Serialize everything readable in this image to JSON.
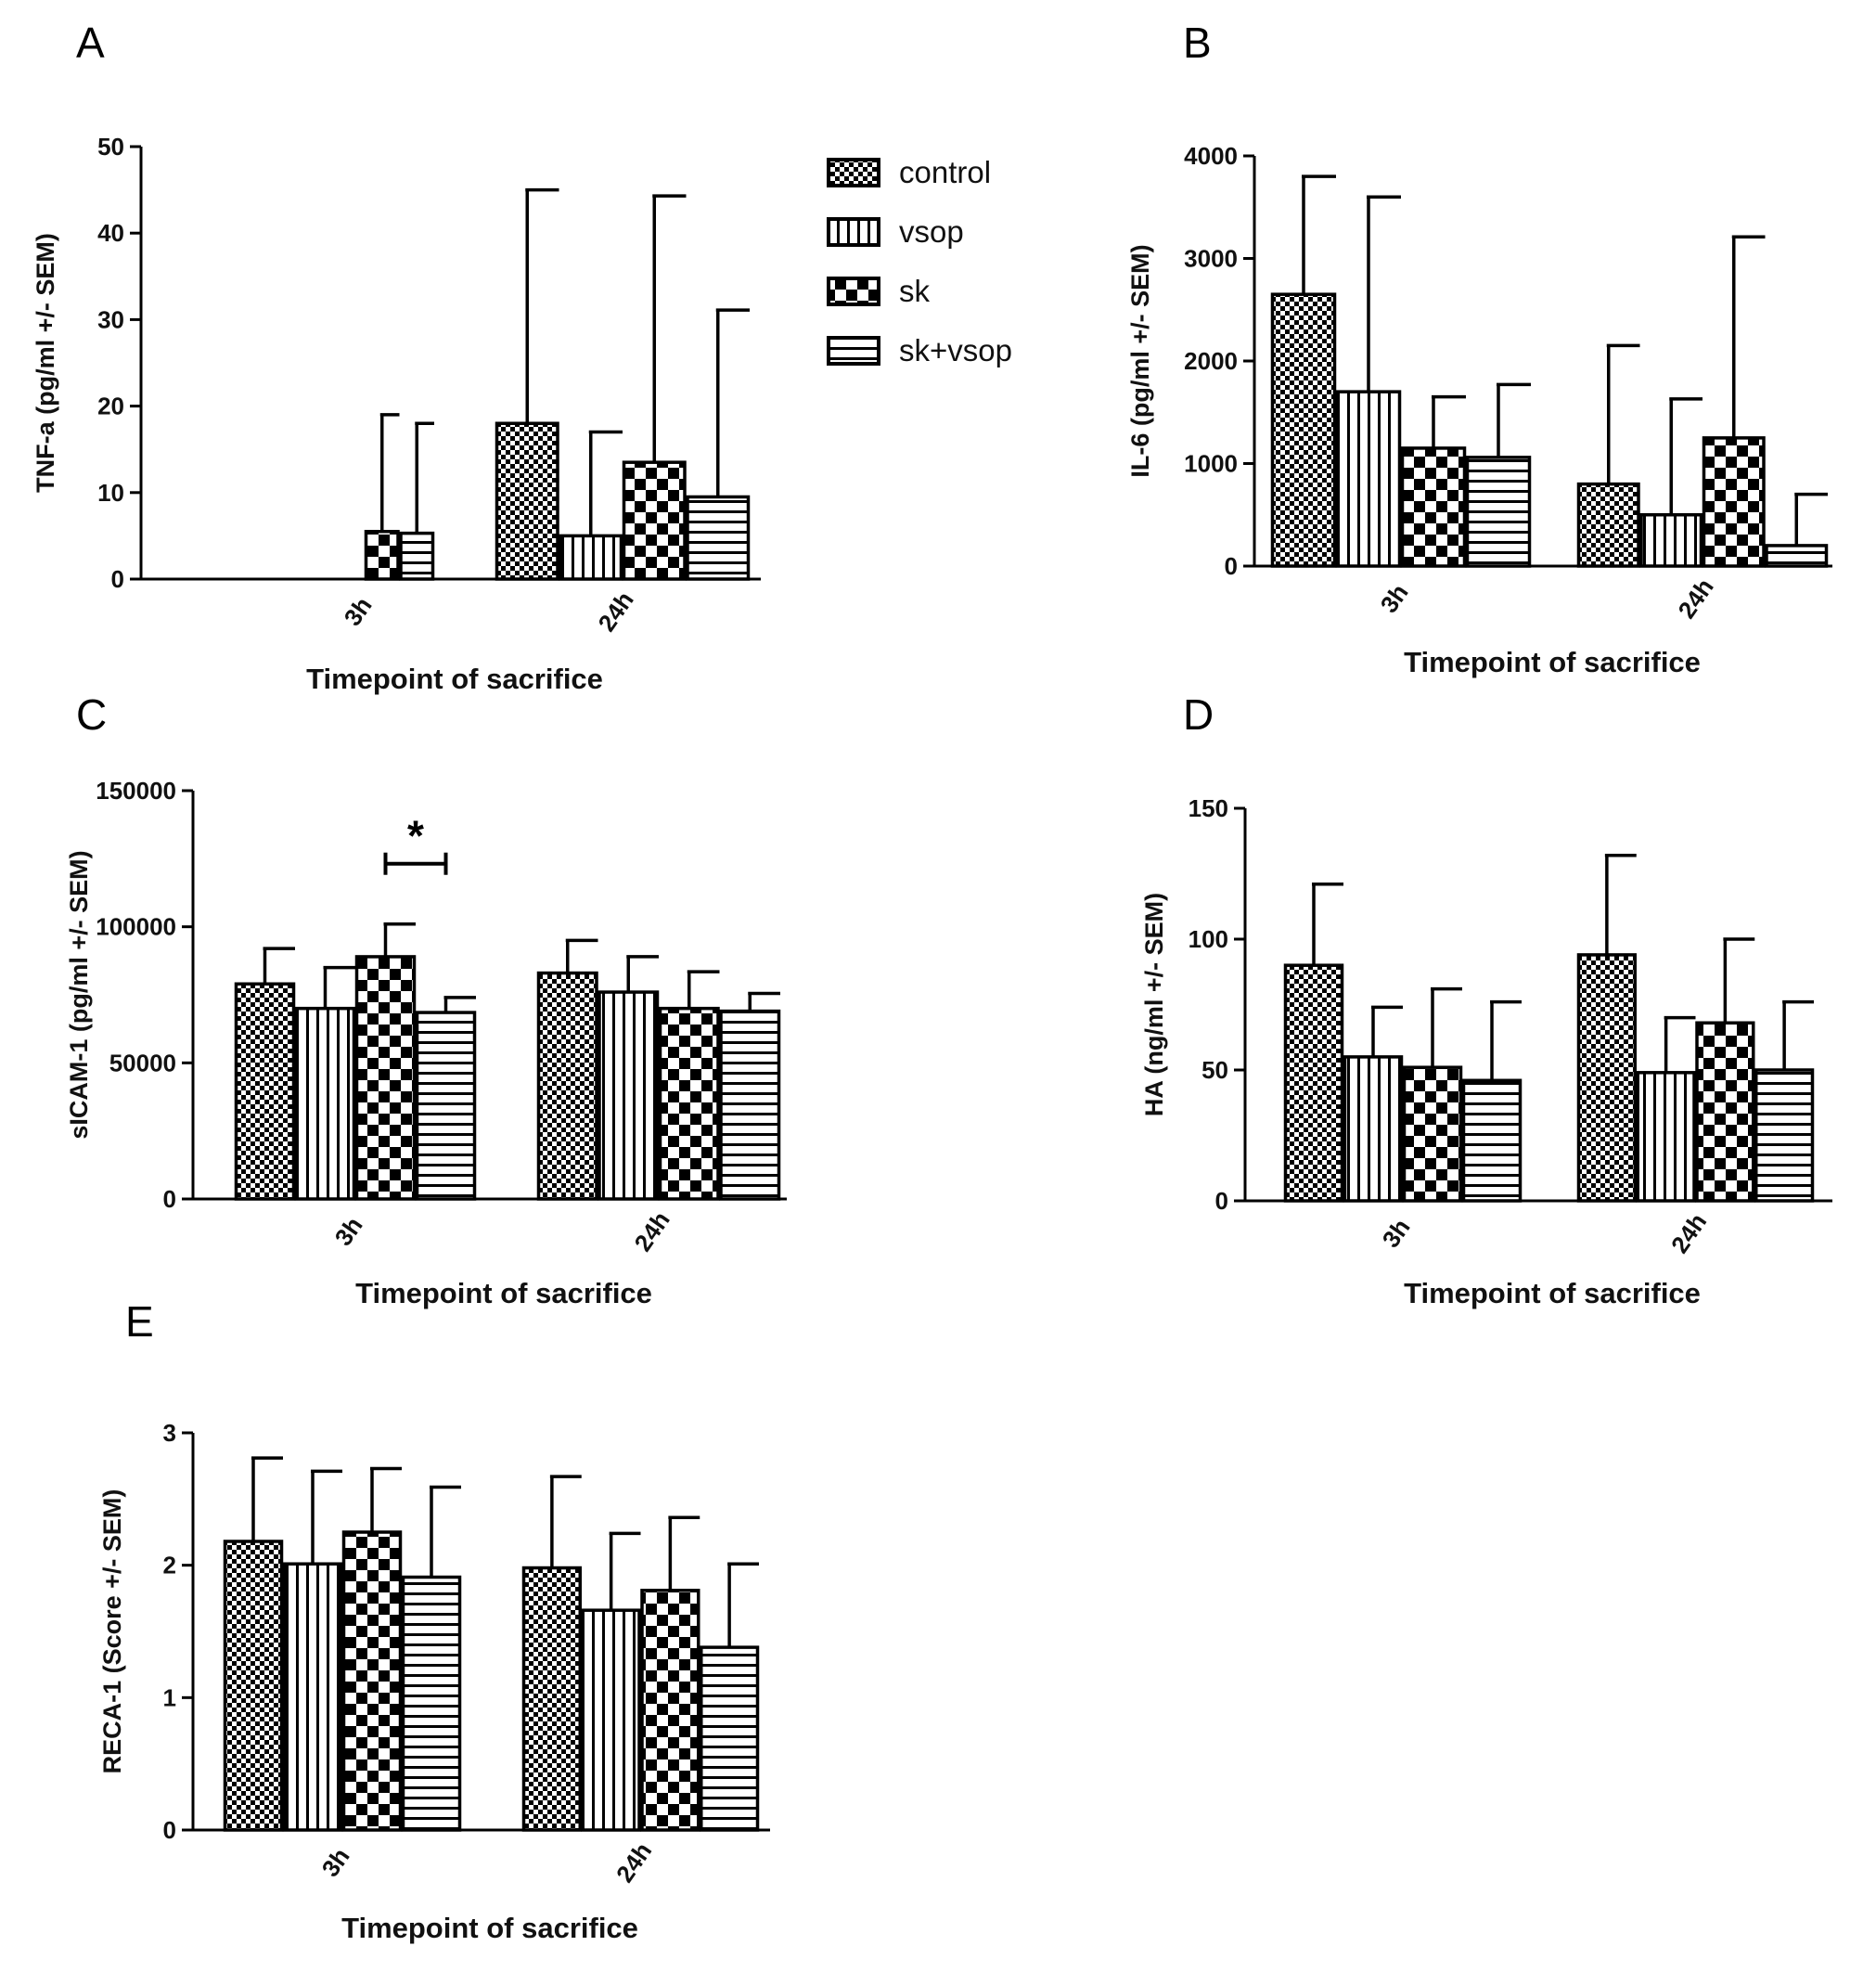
{
  "colors": {
    "ink": "#000000",
    "background": "#ffffff"
  },
  "legend": {
    "entries": [
      {
        "label": "control",
        "pattern": "checker-fine"
      },
      {
        "label": "vsop",
        "pattern": "vertical"
      },
      {
        "label": "sk",
        "pattern": "checker-big"
      },
      {
        "label": "sk+vsop",
        "pattern": "horizontal"
      }
    ]
  },
  "chart_data": [
    {
      "panel": "A",
      "type": "bar",
      "categories": [
        "3h",
        "24h"
      ],
      "series": [
        {
          "name": "control",
          "values": [
            0,
            18
          ],
          "errors": [
            0,
            27
          ]
        },
        {
          "name": "vsop",
          "values": [
            0,
            5
          ],
          "errors": [
            0,
            12
          ]
        },
        {
          "name": "sk",
          "values": [
            5.5,
            13.5
          ],
          "errors": [
            13.5,
            30.8
          ]
        },
        {
          "name": "sk+vsop",
          "values": [
            5.3,
            9.5
          ],
          "errors": [
            12.7,
            21.6
          ]
        }
      ],
      "xlabel": "Timepoint of sacrifice",
      "ylabel": "TNF-a (pg/ml +/- SEM)",
      "ylim": [
        0,
        50
      ],
      "yticks": [
        0,
        10,
        20,
        30,
        40,
        50
      ],
      "ytick_labels": [
        "0",
        "10",
        "20",
        "30",
        "40",
        "50"
      ]
    },
    {
      "panel": "B",
      "type": "bar",
      "categories": [
        "3h",
        "24h"
      ],
      "series": [
        {
          "name": "control",
          "values": [
            2650,
            800
          ],
          "errors": [
            1150,
            1350
          ]
        },
        {
          "name": "vsop",
          "values": [
            1700,
            500
          ],
          "errors": [
            1900,
            1130
          ]
        },
        {
          "name": "sk",
          "values": [
            1150,
            1250
          ],
          "errors": [
            500,
            1960
          ]
        },
        {
          "name": "sk+vsop",
          "values": [
            1060,
            200
          ],
          "errors": [
            710,
            500
          ]
        }
      ],
      "xlabel": "Timepoint of sacrifice",
      "ylabel": "IL-6 (pg/ml +/- SEM)",
      "ylim": [
        0,
        4000
      ],
      "yticks": [
        0,
        1000,
        2000,
        3000,
        4000
      ],
      "ytick_labels": [
        "0",
        "1000",
        "2000",
        "3000",
        "4000"
      ]
    },
    {
      "panel": "C",
      "type": "bar",
      "categories": [
        "3h",
        "24h"
      ],
      "series": [
        {
          "name": "control",
          "values": [
            79000,
            83000
          ],
          "errors": [
            13000,
            12000
          ]
        },
        {
          "name": "vsop",
          "values": [
            70000,
            76000
          ],
          "errors": [
            15000,
            13000
          ]
        },
        {
          "name": "sk",
          "values": [
            89000,
            70000
          ],
          "errors": [
            12000,
            13500
          ]
        },
        {
          "name": "sk+vsop",
          "values": [
            68500,
            69000
          ],
          "errors": [
            5500,
            6500
          ]
        }
      ],
      "significance": {
        "label": "*",
        "category": "3h",
        "from_series": "sk",
        "to_series": "sk+vsop"
      },
      "xlabel": "Timepoint of sacrifice",
      "ylabel": "sICAM-1 (pg/ml +/- SEM)",
      "ylim": [
        0,
        150000
      ],
      "yticks": [
        0,
        50000,
        100000,
        150000
      ],
      "ytick_labels": [
        "0",
        "50000",
        "100000",
        "150000"
      ]
    },
    {
      "panel": "D",
      "type": "bar",
      "categories": [
        "3h",
        "24h"
      ],
      "series": [
        {
          "name": "control",
          "values": [
            90,
            94
          ],
          "errors": [
            31,
            38
          ]
        },
        {
          "name": "vsop",
          "values": [
            55,
            49
          ],
          "errors": [
            19,
            21
          ]
        },
        {
          "name": "sk",
          "values": [
            51,
            68
          ],
          "errors": [
            30,
            32
          ]
        },
        {
          "name": "sk+vsop",
          "values": [
            46,
            50
          ],
          "errors": [
            30,
            26
          ]
        }
      ],
      "xlabel": "Timepoint of sacrifice",
      "ylabel": "HA (ng/ml +/- SEM)",
      "ylim": [
        0,
        150
      ],
      "yticks": [
        0,
        50,
        100,
        150
      ],
      "ytick_labels": [
        "0",
        "50",
        "100",
        "150"
      ]
    },
    {
      "panel": "E",
      "type": "bar",
      "categories": [
        "3h",
        "24h"
      ],
      "series": [
        {
          "name": "control",
          "values": [
            2.18,
            1.98
          ],
          "errors": [
            0.63,
            0.69
          ]
        },
        {
          "name": "vsop",
          "values": [
            2.01,
            1.66
          ],
          "errors": [
            0.7,
            0.58
          ]
        },
        {
          "name": "sk",
          "values": [
            2.25,
            1.81
          ],
          "errors": [
            0.48,
            0.55
          ]
        },
        {
          "name": "sk+vsop",
          "values": [
            1.91,
            1.38
          ],
          "errors": [
            0.68,
            0.63
          ]
        }
      ],
      "xlabel": "Timepoint of sacrifice",
      "ylabel": "RECA-1 (Score +/- SEM)",
      "ylim": [
        0,
        3
      ],
      "yticks": [
        0,
        1,
        2,
        3
      ],
      "ytick_labels": [
        "0",
        "1",
        "2",
        "3"
      ]
    }
  ]
}
